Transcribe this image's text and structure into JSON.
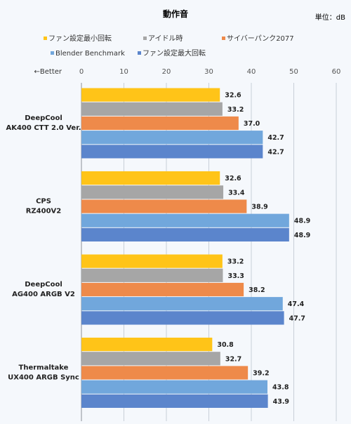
{
  "title": "動作音",
  "unit_label": "単位：dB",
  "direction_label": "←Better",
  "colors": {
    "min_fan": "#ffc418",
    "idle": "#a6a6a6",
    "cyberpunk": "#ee8a4a",
    "blender": "#71a7dc",
    "max_fan": "#5b85cc",
    "grid": "#c8cfd8",
    "background": "#f5f8fc"
  },
  "chart_data": {
    "type": "bar",
    "orientation": "horizontal",
    "title": "動作音",
    "xlabel": "",
    "ylabel": "",
    "xlim": [
      0,
      60
    ],
    "x_ticks": [
      0,
      10,
      20,
      30,
      40,
      50,
      60
    ],
    "grid": true,
    "legend_position": "top",
    "categories": [
      [
        "DeepCool",
        "AK400 CTT 2.0 Ver."
      ],
      [
        "CPS",
        "RZ400V2"
      ],
      [
        "DeepCool",
        "AG400 ARGB V2"
      ],
      [
        "Thermaltake",
        "UX400 ARGB Sync"
      ]
    ],
    "series": [
      {
        "name": "ファン設定最小回転",
        "color": "#ffc418",
        "values": [
          32.6,
          32.6,
          33.2,
          30.8
        ]
      },
      {
        "name": "アイドル時",
        "color": "#a6a6a6",
        "values": [
          33.2,
          33.4,
          33.3,
          32.7
        ]
      },
      {
        "name": "サイバーパンク2077",
        "color": "#ee8a4a",
        "values": [
          37.0,
          38.9,
          38.2,
          39.2
        ]
      },
      {
        "name": "Blender Benchmark",
        "color": "#71a7dc",
        "values": [
          42.7,
          48.9,
          47.4,
          43.8
        ]
      },
      {
        "name": "ファン設定最大回転",
        "color": "#5b85cc",
        "values": [
          42.7,
          48.9,
          47.7,
          43.9
        ]
      }
    ]
  }
}
